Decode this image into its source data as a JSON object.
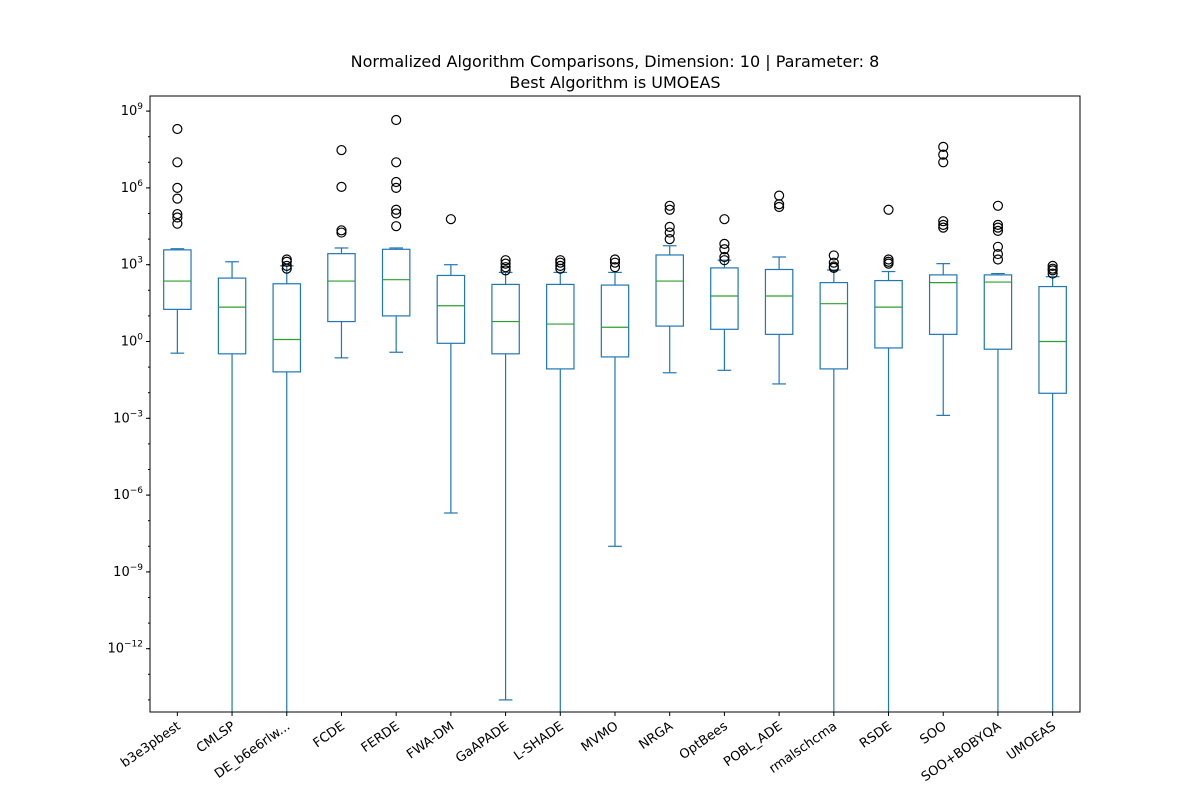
{
  "chart_data": {
    "type": "box",
    "title_line1": "Normalized Algorithm Comparisons, Dimension: 10 | Parameter: 8",
    "title_line2": "Best Algorithm is UMOEAS",
    "y_scale": "log",
    "y_range": [
      1e-15,
      2000000000.0
    ],
    "y_ticks": [
      {
        "value": 1e-12,
        "base": "10",
        "exp": "−12"
      },
      {
        "value": 1e-09,
        "base": "10",
        "exp": "−9"
      },
      {
        "value": 1e-06,
        "base": "10",
        "exp": "−6"
      },
      {
        "value": 0.001,
        "base": "10",
        "exp": "−3"
      },
      {
        "value": 1,
        "base": "10",
        "exp": "0"
      },
      {
        "value": 1000.0,
        "base": "10",
        "exp": "3"
      },
      {
        "value": 1000000.0,
        "base": "10",
        "exp": "6"
      },
      {
        "value": 1000000000.0,
        "base": "10",
        "exp": "9"
      }
    ],
    "grid": false,
    "boxes": [
      {
        "name": "b3e3pbest",
        "whislo": 0.35,
        "q1": 18,
        "med": 230,
        "q3": 3800,
        "whishi": 4200,
        "fliers": [
          200000000,
          10000000,
          1000000,
          380000,
          95000,
          70000,
          40000
        ]
      },
      {
        "name": "CMLSP",
        "whislo": 1e-16,
        "q1": 0.33,
        "med": 22,
        "q3": 300,
        "whishi": 1300,
        "fliers": []
      },
      {
        "name": "DE_b6e6rlwithrestart",
        "whislo": 1e-16,
        "q1": 0.065,
        "med": 1.2,
        "q3": 180,
        "whishi": 900,
        "fliers": [
          1600,
          1300,
          900,
          700
        ]
      },
      {
        "name": "FCDE",
        "whislo": 0.23,
        "q1": 6,
        "med": 230,
        "q3": 2700,
        "whishi": 4500,
        "fliers": [
          30000000,
          1100000,
          22000,
          18000
        ]
      },
      {
        "name": "FERDE",
        "whislo": 0.38,
        "q1": 10,
        "med": 260,
        "q3": 4000,
        "whishi": 4500,
        "fliers": [
          450000000,
          10000000,
          1700000,
          1000000,
          140000,
          100000,
          32000
        ]
      },
      {
        "name": "FWA-DM",
        "whislo": 2e-07,
        "q1": 0.85,
        "med": 25,
        "q3": 380,
        "whishi": 1000,
        "fliers": [
          60000
        ]
      },
      {
        "name": "GaAPADE",
        "whislo": 1e-14,
        "q1": 0.33,
        "med": 6,
        "q3": 170,
        "whishi": 500,
        "fliers": [
          1500,
          1100,
          800,
          600
        ]
      },
      {
        "name": "L-SHADE",
        "whislo": 1e-16,
        "q1": 0.085,
        "med": 4.8,
        "q3": 170,
        "whishi": 500,
        "fliers": [
          1500,
          1200,
          900,
          700
        ]
      },
      {
        "name": "MVMO",
        "whislo": 1e-08,
        "q1": 0.25,
        "med": 3.6,
        "q3": 160,
        "whishi": 500,
        "fliers": [
          1600,
          1200,
          800
        ]
      },
      {
        "name": "NRGA",
        "whislo": 0.06,
        "q1": 4,
        "med": 230,
        "q3": 2400,
        "whishi": 5500,
        "fliers": [
          200000,
          140000,
          30000,
          18000,
          10000
        ]
      },
      {
        "name": "OptBees",
        "whislo": 0.075,
        "q1": 3,
        "med": 60,
        "q3": 750,
        "whishi": 1500,
        "fliers": [
          60000,
          6500,
          4000,
          2000,
          1500
        ]
      },
      {
        "name": "POBL_ADE",
        "whislo": 0.022,
        "q1": 1.9,
        "med": 60,
        "q3": 650,
        "whishi": 2000,
        "fliers": [
          500000,
          230000,
          180000
        ]
      },
      {
        "name": "rmalschcma",
        "whislo": 1e-16,
        "q1": 0.085,
        "med": 30,
        "q3": 200,
        "whishi": 620,
        "fliers": [
          2300,
          1200,
          850,
          750
        ]
      },
      {
        "name": "RSDE",
        "whislo": 1e-16,
        "q1": 0.56,
        "med": 22,
        "q3": 240,
        "whishi": 540,
        "fliers": [
          140000,
          1600,
          1300,
          1100
        ]
      },
      {
        "name": "SOO",
        "whislo": 0.0013,
        "q1": 1.9,
        "med": 200,
        "q3": 400,
        "whishi": 1100,
        "fliers": [
          40000000,
          20000000,
          10000000,
          50000,
          36000,
          28000
        ]
      },
      {
        "name": "SOO+BOBYQA",
        "whislo": 1e-16,
        "q1": 0.5,
        "med": 210,
        "q3": 400,
        "whishi": 450,
        "fliers": [
          200000,
          36000,
          28000,
          21000,
          5000,
          2600,
          1600
        ]
      },
      {
        "name": "UMOEAS",
        "whislo": 1e-16,
        "q1": 0.0095,
        "med": 1,
        "q3": 140,
        "whishi": 340,
        "fliers": [
          900,
          700,
          600,
          450
        ]
      }
    ],
    "category_labels": [
      "b3e3pbest",
      "CMLSP",
      "DE_b6e6rlw...",
      "FCDE",
      "FERDE",
      "FWA-DM",
      "GaAPADE",
      "L-SHADE",
      "MVMO",
      "NRGA",
      "OptBees",
      "POBL_ADE",
      "rmalschcma",
      "RSDE",
      "SOO",
      "SOO+BOBYQA",
      "UMOEAS"
    ],
    "colors": {
      "box": "#1f77b4",
      "median": "#2ca02c",
      "flier": "#000000"
    }
  }
}
